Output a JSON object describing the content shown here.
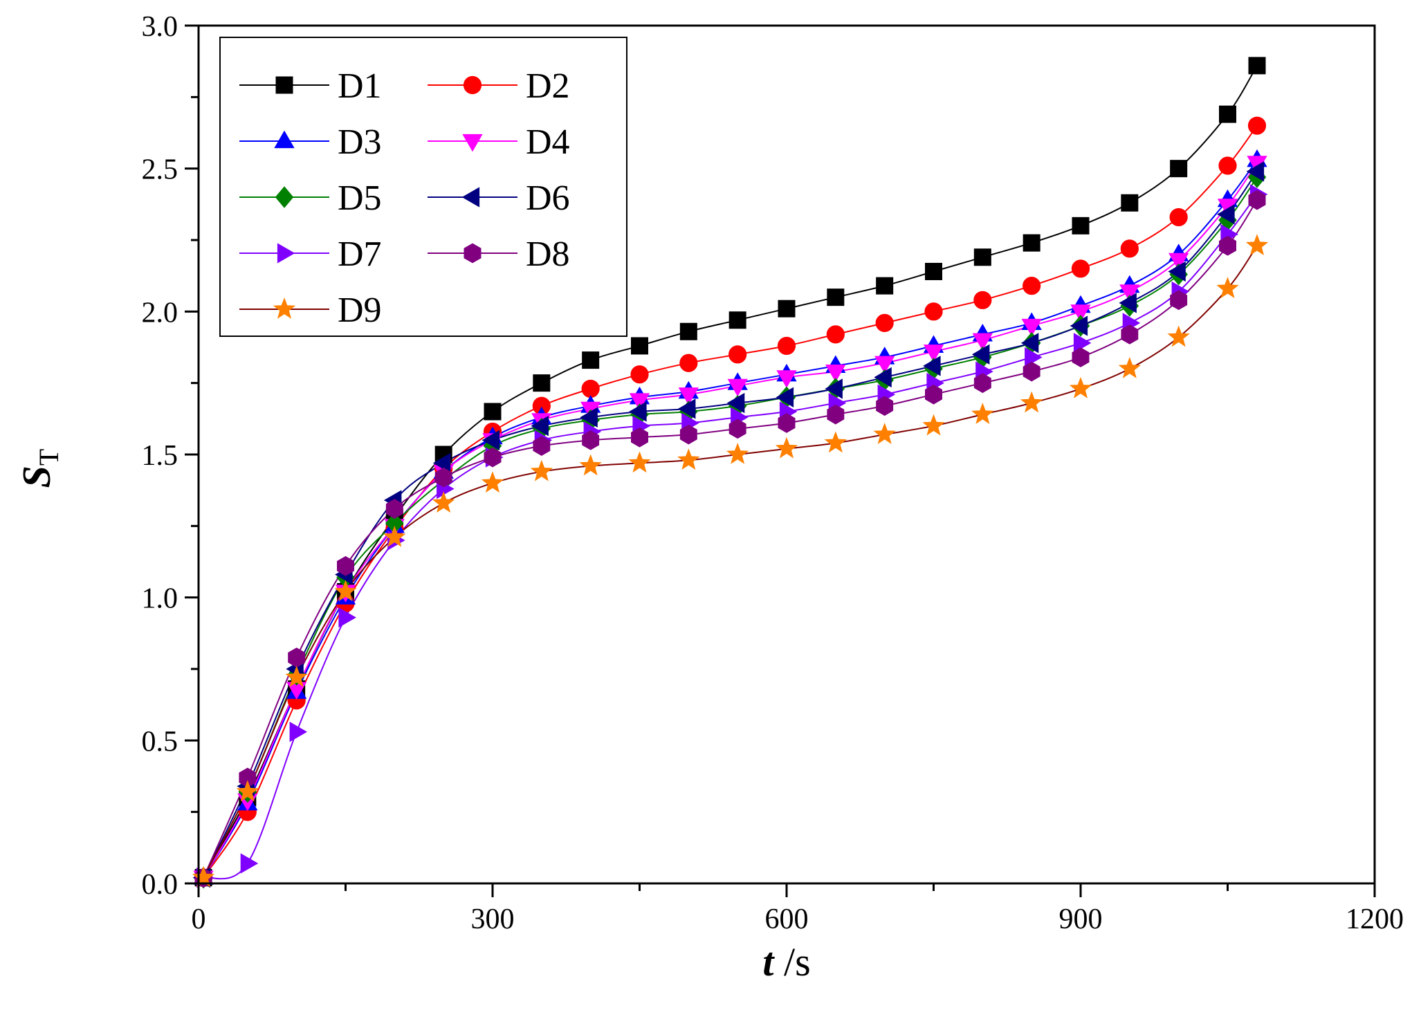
{
  "chart_data": {
    "type": "line",
    "title": "",
    "xlabel": {
      "symbol": "t",
      "unit": " /s"
    },
    "ylabel": {
      "symbol": "S",
      "subscript": "T"
    },
    "xlim": [
      0,
      1200
    ],
    "ylim": [
      0,
      3.0
    ],
    "x_ticks": [
      0,
      300,
      600,
      900,
      1200
    ],
    "x_tick_labels": [
      "0",
      "300",
      "600",
      "900",
      "1200"
    ],
    "y_ticks": [
      0,
      0.5,
      1.0,
      1.5,
      2.0,
      2.5,
      3.0
    ],
    "y_tick_labels": [
      "0.0",
      "0.5",
      "1.0",
      "1.5",
      "2.0",
      "2.5",
      "3.0"
    ],
    "grid": false,
    "legend_position": "top-left",
    "x": [
      5,
      50,
      100,
      150,
      200,
      250,
      300,
      350,
      400,
      450,
      500,
      550,
      600,
      650,
      700,
      750,
      800,
      850,
      900,
      950,
      1000,
      1050,
      1080
    ],
    "series": [
      {
        "name": "D1",
        "color": "#000000",
        "marker": "square",
        "values": [
          0.02,
          0.3,
          0.68,
          1.02,
          1.28,
          1.5,
          1.65,
          1.75,
          1.83,
          1.88,
          1.93,
          1.97,
          2.01,
          2.05,
          2.09,
          2.14,
          2.19,
          2.24,
          2.3,
          2.38,
          2.5,
          2.69,
          2.86
        ]
      },
      {
        "name": "D2",
        "color": "#ff0000",
        "marker": "circle",
        "values": [
          0.02,
          0.25,
          0.64,
          0.98,
          1.24,
          1.45,
          1.58,
          1.67,
          1.73,
          1.78,
          1.82,
          1.85,
          1.88,
          1.92,
          1.96,
          2.0,
          2.04,
          2.09,
          2.15,
          2.22,
          2.33,
          2.51,
          2.65
        ]
      },
      {
        "name": "D3",
        "color": "#0000ff",
        "marker": "triangle-up",
        "values": [
          0.02,
          0.28,
          0.67,
          1.0,
          1.25,
          1.44,
          1.56,
          1.63,
          1.67,
          1.7,
          1.72,
          1.75,
          1.78,
          1.81,
          1.84,
          1.88,
          1.92,
          1.96,
          2.02,
          2.09,
          2.2,
          2.39,
          2.53
        ]
      },
      {
        "name": "D4",
        "color": "#ff00ff",
        "marker": "triangle-down",
        "values": [
          0.02,
          0.29,
          0.68,
          1.02,
          1.25,
          1.44,
          1.55,
          1.62,
          1.66,
          1.69,
          1.71,
          1.74,
          1.77,
          1.79,
          1.82,
          1.86,
          1.9,
          1.95,
          2.0,
          2.07,
          2.18,
          2.37,
          2.52
        ]
      },
      {
        "name": "D5",
        "color": "#008000",
        "marker": "diamond",
        "values": [
          0.02,
          0.32,
          0.73,
          1.07,
          1.26,
          1.41,
          1.53,
          1.59,
          1.62,
          1.64,
          1.65,
          1.67,
          1.7,
          1.73,
          1.76,
          1.8,
          1.84,
          1.89,
          1.95,
          2.02,
          2.13,
          2.32,
          2.47
        ]
      },
      {
        "name": "D6",
        "color": "#000080",
        "marker": "triangle-left",
        "values": [
          0.02,
          0.34,
          0.75,
          1.08,
          1.34,
          1.47,
          1.55,
          1.6,
          1.63,
          1.65,
          1.66,
          1.68,
          1.7,
          1.73,
          1.77,
          1.81,
          1.85,
          1.89,
          1.95,
          2.03,
          2.14,
          2.34,
          2.49
        ]
      },
      {
        "name": "D7",
        "color": "#8000ff",
        "marker": "triangle-right",
        "values": [
          0.02,
          0.07,
          0.53,
          0.93,
          1.2,
          1.38,
          1.49,
          1.55,
          1.58,
          1.6,
          1.61,
          1.63,
          1.65,
          1.68,
          1.71,
          1.75,
          1.79,
          1.84,
          1.89,
          1.96,
          2.07,
          2.27,
          2.41
        ]
      },
      {
        "name": "D8",
        "color": "#800080",
        "marker": "hexagon",
        "values": [
          0.02,
          0.37,
          0.79,
          1.11,
          1.31,
          1.42,
          1.49,
          1.53,
          1.55,
          1.56,
          1.57,
          1.59,
          1.61,
          1.64,
          1.67,
          1.71,
          1.75,
          1.79,
          1.84,
          1.92,
          2.04,
          2.23,
          2.39
        ]
      },
      {
        "name": "D9",
        "color": "#ff8000",
        "line_color": "#800000",
        "marker": "star",
        "values": [
          0.02,
          0.32,
          0.72,
          1.02,
          1.21,
          1.33,
          1.4,
          1.44,
          1.46,
          1.47,
          1.48,
          1.5,
          1.52,
          1.54,
          1.57,
          1.6,
          1.64,
          1.68,
          1.73,
          1.8,
          1.91,
          2.08,
          2.23
        ]
      }
    ]
  }
}
